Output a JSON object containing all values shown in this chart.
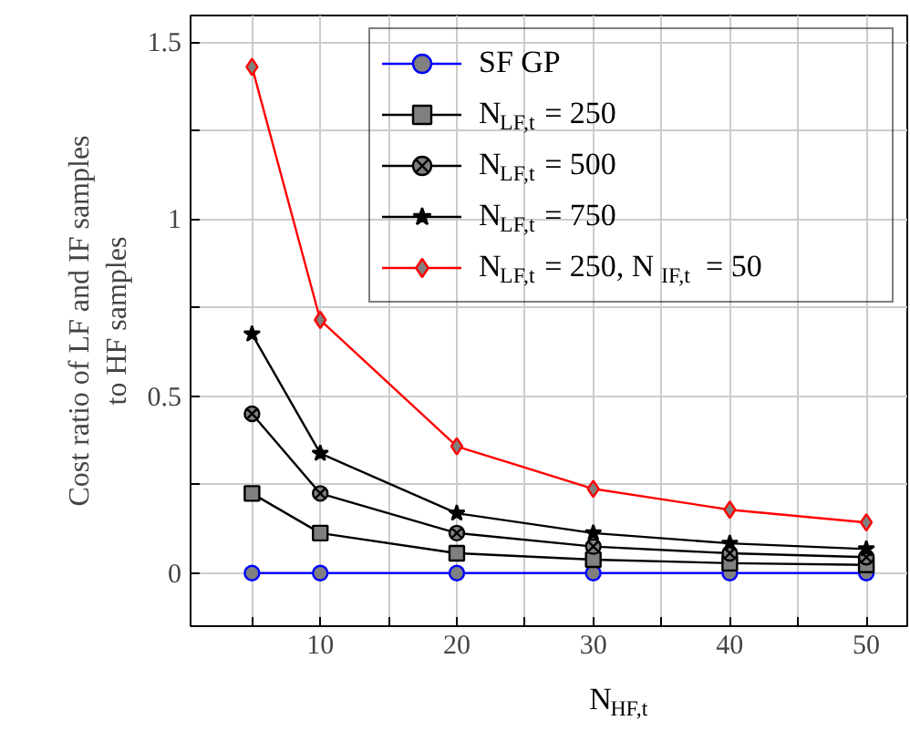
{
  "chart_data": {
    "type": "line",
    "xlabel": "N$_{HF,t}$",
    "ylabel": "Cost ratio of LF and IF samples\nto HF samples",
    "x": [
      5,
      10,
      20,
      30,
      40,
      50
    ],
    "series": [
      {
        "name": "SF GP",
        "color": "#0000ff",
        "marker": "circle",
        "values": [
          0,
          0,
          0,
          0,
          0,
          0
        ]
      },
      {
        "name": "N$_{LF,t}$ = 250",
        "color": "#000000",
        "marker": "square",
        "values": [
          0.225,
          0.113,
          0.056,
          0.038,
          0.028,
          0.023
        ]
      },
      {
        "name": "N$_{LF,t}$ = 500",
        "color": "#000000",
        "marker": "cross",
        "values": [
          0.45,
          0.225,
          0.113,
          0.075,
          0.056,
          0.045
        ]
      },
      {
        "name": "N$_{LF,t}$ = 750",
        "color": "#000000",
        "marker": "star",
        "values": [
          0.675,
          0.338,
          0.169,
          0.113,
          0.084,
          0.068
        ]
      },
      {
        "name": "N$_{LF,t}$ = 250, N$_{IF,t}$ = 50",
        "color": "#ff0000",
        "marker": "diamond",
        "values": [
          1.43,
          0.715,
          0.358,
          0.238,
          0.179,
          0.143
        ]
      }
    ],
    "xlim": [
      0.5,
      53
    ],
    "ylim": [
      -0.15,
      1.575
    ],
    "xticks": [
      {
        "value": 5,
        "label": null
      },
      10,
      {
        "value": 15,
        "label": null
      },
      20,
      {
        "value": 25,
        "label": null
      },
      30,
      {
        "value": 35,
        "label": null
      },
      40,
      {
        "value": 45,
        "label": null
      },
      50
    ],
    "yticks": [
      0,
      {
        "value": 0.25,
        "label": null
      },
      0.5,
      {
        "value": 0.75,
        "label": null
      },
      1,
      {
        "value": 1.25,
        "label": null
      },
      1.5
    ],
    "grid": true,
    "legend": "top right",
    "line_style": "solid"
  }
}
